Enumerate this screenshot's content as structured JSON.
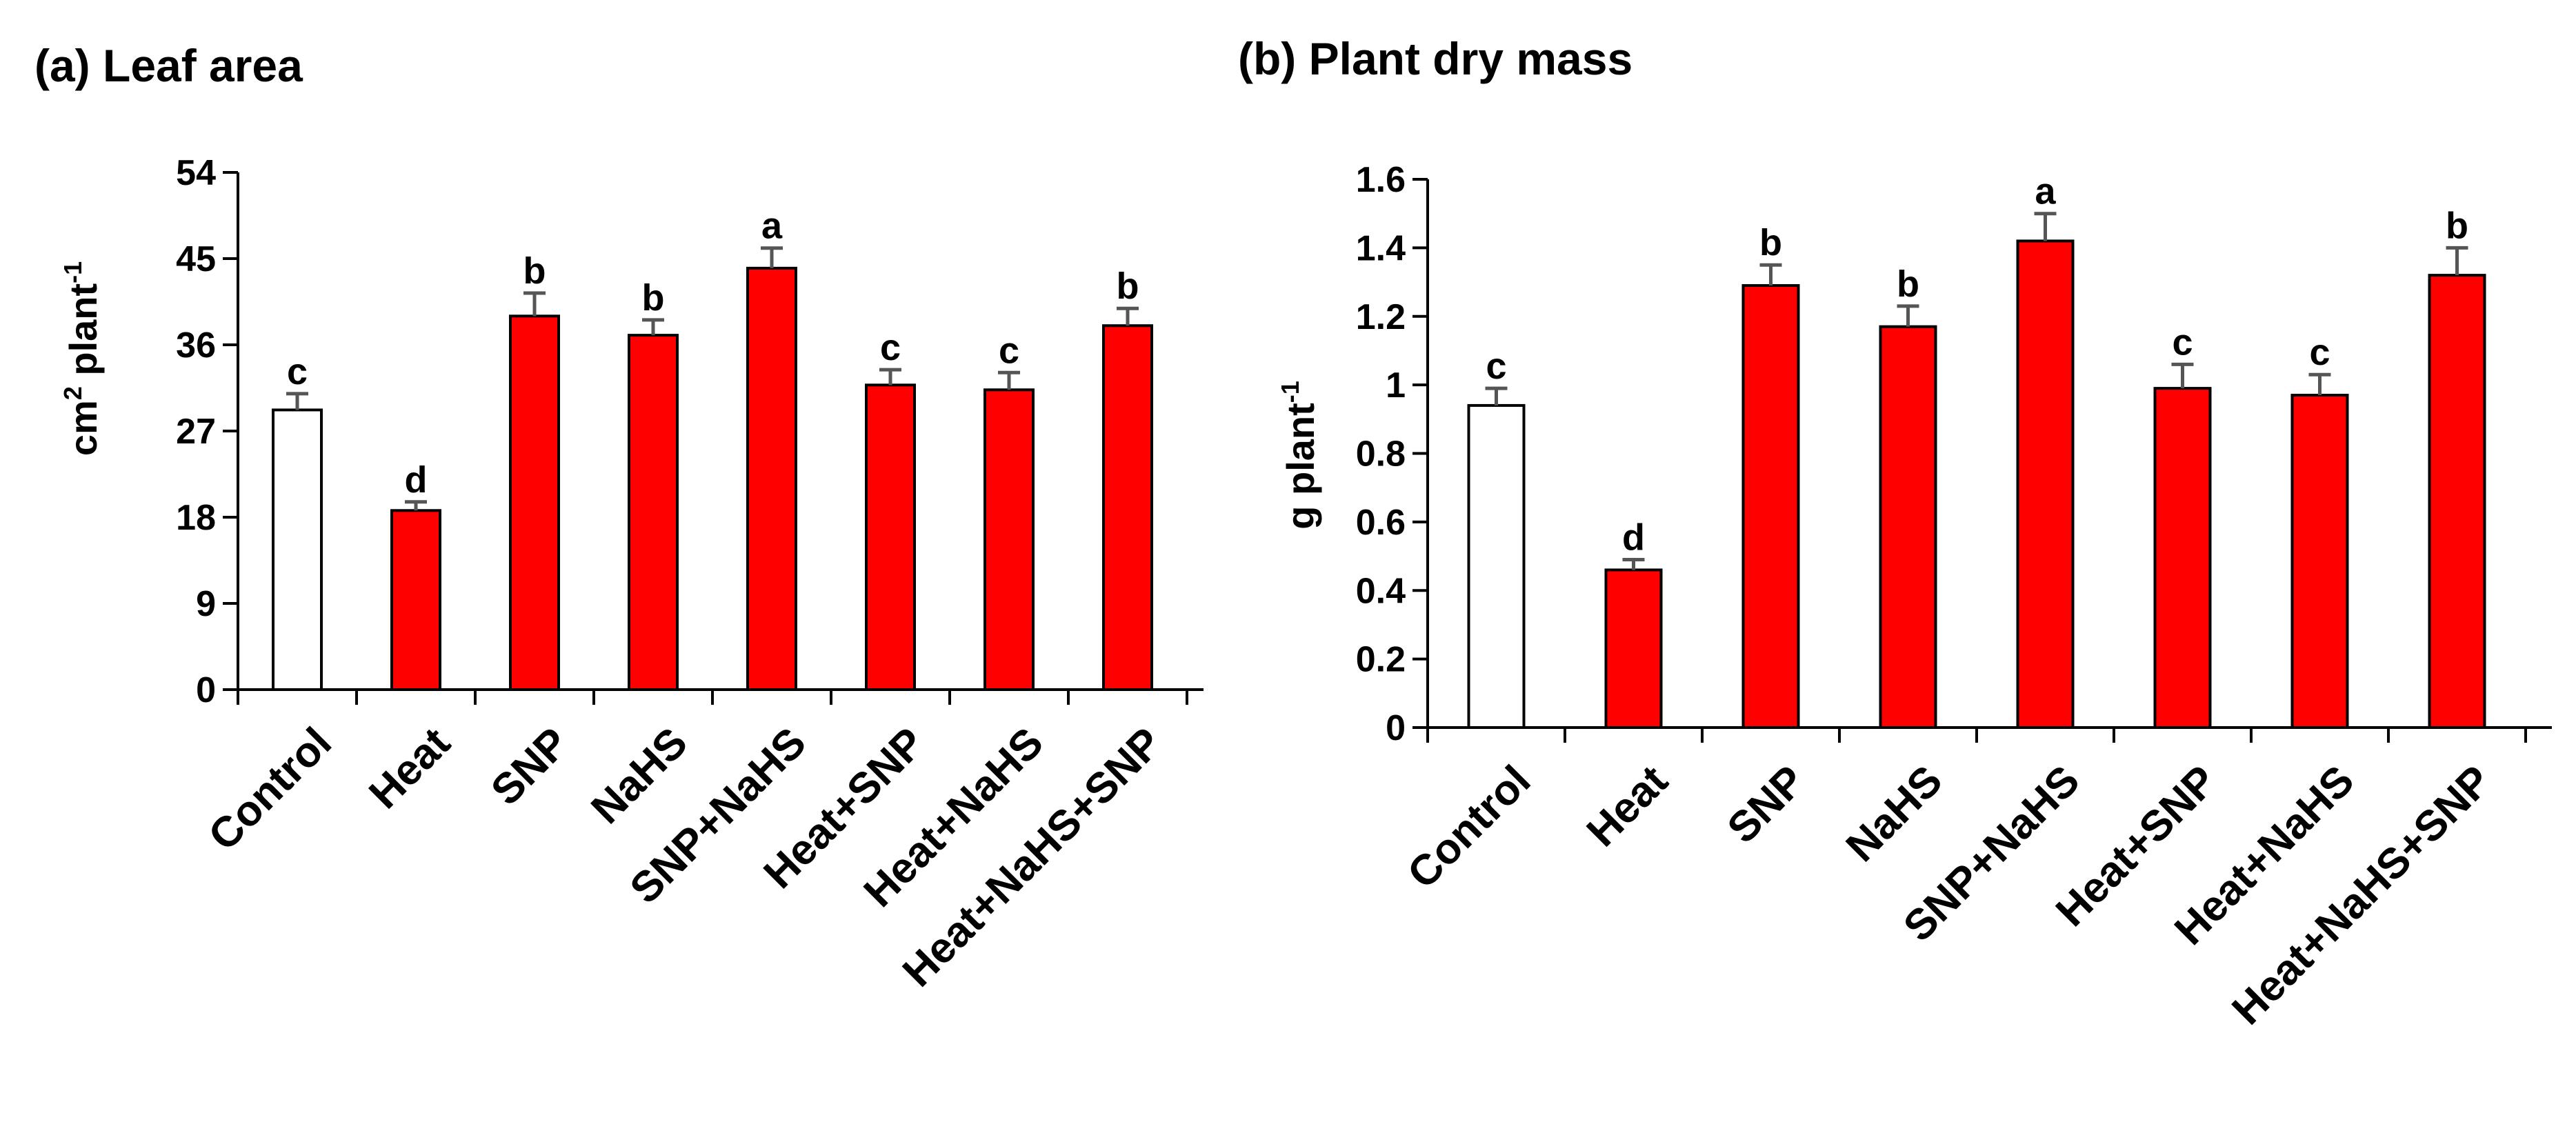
{
  "chart_data": [
    {
      "type": "bar",
      "title": "(a) Leaf area",
      "xlabel": "",
      "ylabel": "cm² plant⁻¹",
      "ylabel_base": "cm",
      "ylabel_sup1": "2",
      "ylabel_mid": " plant",
      "ylabel_sup2": "-1",
      "ylim": [
        0,
        54
      ],
      "yticks": [
        0,
        9,
        18,
        27,
        36,
        45,
        54
      ],
      "categories": [
        "Control",
        "Heat",
        "SNP",
        "NaHS",
        "SNP+NaHS",
        "Heat+SNP",
        "Heat+NaHS",
        "Heat+NaHS+SNP"
      ],
      "values": [
        29.2,
        18.7,
        39.0,
        37.0,
        44.0,
        31.8,
        31.3,
        38.0
      ],
      "errors": [
        1.7,
        0.9,
        2.4,
        1.6,
        2.1,
        1.6,
        1.8,
        1.8
      ],
      "significance": [
        "c",
        "d",
        "b",
        "b",
        "a",
        "c",
        "c",
        "b"
      ],
      "colors": [
        "#ffffff",
        "#ff0000",
        "#ff0000",
        "#ff0000",
        "#ff0000",
        "#ff0000",
        "#ff0000",
        "#ff0000"
      ],
      "grid": false,
      "legend": "none"
    },
    {
      "type": "bar",
      "title": "(b) Plant dry mass",
      "xlabel": "",
      "ylabel": "g plant⁻¹",
      "ylabel_base": "g plant",
      "ylabel_sup1": "",
      "ylabel_mid": "",
      "ylabel_sup2": "-1",
      "ylim": [
        0,
        1.6
      ],
      "yticks": [
        0,
        0.2,
        0.4,
        0.6,
        0.8,
        1,
        1.2,
        1.4,
        1.6
      ],
      "ytick_labels": [
        "0",
        "0.2",
        "0.4",
        "0.6",
        "0.8",
        "1",
        "1.2",
        "1.4",
        "1.6"
      ],
      "categories": [
        "Control",
        "Heat",
        "SNP",
        "NaHS",
        "SNP+NaHS",
        "Heat+SNP",
        "Heat+NaHS",
        "Heat+NaHS+SNP"
      ],
      "values": [
        0.94,
        0.46,
        1.29,
        1.17,
        1.42,
        0.99,
        0.97,
        1.32
      ],
      "errors": [
        0.05,
        0.03,
        0.06,
        0.06,
        0.08,
        0.07,
        0.06,
        0.08
      ],
      "significance": [
        "c",
        "d",
        "b",
        "b",
        "a",
        "c",
        "c",
        "b"
      ],
      "colors": [
        "#ffffff",
        "#ff0000",
        "#ff0000",
        "#ff0000",
        "#ff0000",
        "#ff0000",
        "#ff0000",
        "#ff0000"
      ],
      "grid": false,
      "legend": "none"
    }
  ]
}
